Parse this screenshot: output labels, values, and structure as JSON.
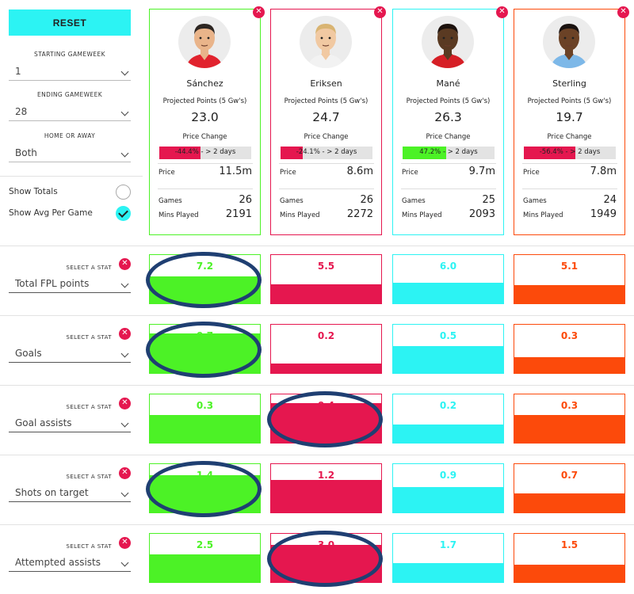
{
  "sidebar": {
    "reset_label": "RESET",
    "starting_gameweek_label": "STARTING GAMEWEEK",
    "starting_gameweek_value": "1",
    "ending_gameweek_label": "ENDING GAMEWEEK",
    "ending_gameweek_value": "28",
    "home_away_label": "HOME OR AWAY",
    "home_away_value": "Both",
    "show_totals_label": "Show Totals",
    "show_totals_selected": false,
    "show_avg_label": "Show Avg Per Game",
    "show_avg_selected": true
  },
  "card_labels": {
    "projected": "Projected Points (5 Gw's)",
    "price_change": "Price Change",
    "price": "Price",
    "games": "Games",
    "mins": "Mins Played",
    "close_glyph": "✕"
  },
  "players": [
    {
      "name": "Sánchez",
      "color": "#4cf226",
      "kit": "#e1232e",
      "skin": "#e9b48a",
      "hair": "#2d2622",
      "projected": "23.0",
      "price_change_text": "-44.4% - > 2 days",
      "price_change_pct": 44.4,
      "price_change_color": "#e5174f",
      "price": "11.5m",
      "games": "26",
      "mins": "2191"
    },
    {
      "name": "Eriksen",
      "color": "#e5174f",
      "kit": "#f2f2f2",
      "skin": "#f1c9a2",
      "hair": "#d9b472",
      "projected": "24.7",
      "price_change_text": "-24.1% - > 2 days",
      "price_change_pct": 24.1,
      "price_change_color": "#e5174f",
      "price": "8.6m",
      "games": "26",
      "mins": "2272"
    },
    {
      "name": "Mané",
      "color": "#2cf3f3",
      "kit": "#d61f26",
      "skin": "#5a3a22",
      "hair": "#1c120d",
      "projected": "26.3",
      "price_change_text": "47.2% - > 2 days",
      "price_change_pct": 47.2,
      "price_change_color": "#4cf226",
      "price": "9.7m",
      "games": "25",
      "mins": "2093"
    },
    {
      "name": "Sterling",
      "color": "#fc4a0b",
      "kit": "#7db8e8",
      "skin": "#6b4226",
      "hair": "#1a1210",
      "projected": "19.7",
      "price_change_text": "-56.4% - > 2 days",
      "price_change_pct": 56.4,
      "price_change_color": "#e5174f",
      "price": "7.8m",
      "games": "24",
      "mins": "1949"
    }
  ],
  "stat_label_text": "SELECT A STAT",
  "stats": [
    {
      "name": "Total FPL points",
      "values": [
        "7.2",
        "5.5",
        "6.0",
        "5.1"
      ],
      "fill": [
        0.55,
        0.4,
        0.43,
        0.38
      ],
      "highlight": [
        0
      ]
    },
    {
      "name": "Goals",
      "values": [
        "0.7",
        "0.2",
        "0.5",
        "0.3"
      ],
      "fill": [
        0.82,
        0.2,
        0.55,
        0.33
      ],
      "highlight": [
        0
      ]
    },
    {
      "name": "Goal assists",
      "values": [
        "0.3",
        "0.4",
        "0.2",
        "0.3"
      ],
      "fill": [
        0.58,
        0.82,
        0.38,
        0.58
      ],
      "highlight": [
        1
      ]
    },
    {
      "name": "Shots on target",
      "values": [
        "1.4",
        "1.2",
        "0.9",
        "0.7"
      ],
      "fill": [
        0.77,
        0.68,
        0.52,
        0.4
      ],
      "highlight": [
        0
      ]
    },
    {
      "name": "Attempted assists",
      "values": [
        "2.5",
        "3.0",
        "1.7",
        "1.5"
      ],
      "fill": [
        0.58,
        0.77,
        0.4,
        0.36
      ],
      "highlight": [
        1
      ]
    }
  ]
}
